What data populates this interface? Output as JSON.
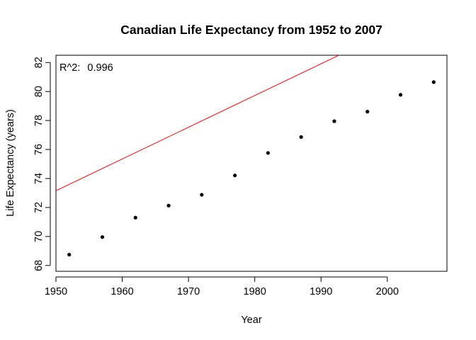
{
  "chart_data": {
    "type": "scatter",
    "title": "Canadian Life Expectancy from 1952 to 2007",
    "xlabel": "Year",
    "ylabel": "Life Expectancy (years)",
    "xlim": [
      1950,
      2009
    ],
    "ylim": [
      67.6,
      82.5
    ],
    "x_ticks": [
      1950,
      1960,
      1970,
      1980,
      1990,
      2000
    ],
    "y_ticks": [
      68,
      70,
      72,
      74,
      76,
      78,
      80,
      82
    ],
    "x": [
      1952,
      1957,
      1962,
      1967,
      1972,
      1977,
      1982,
      1987,
      1992,
      1997,
      2002,
      2007
    ],
    "y": [
      68.75,
      69.96,
      71.3,
      72.13,
      72.88,
      74.21,
      75.76,
      76.86,
      77.95,
      78.61,
      79.77,
      80.65
    ],
    "fit_line": {
      "intercept": -353.7,
      "slope": 0.2189,
      "color": "#ff0000"
    },
    "annotation": {
      "label": "R^2:",
      "value": "0.996"
    },
    "point_color": "#000000",
    "grid": false
  }
}
